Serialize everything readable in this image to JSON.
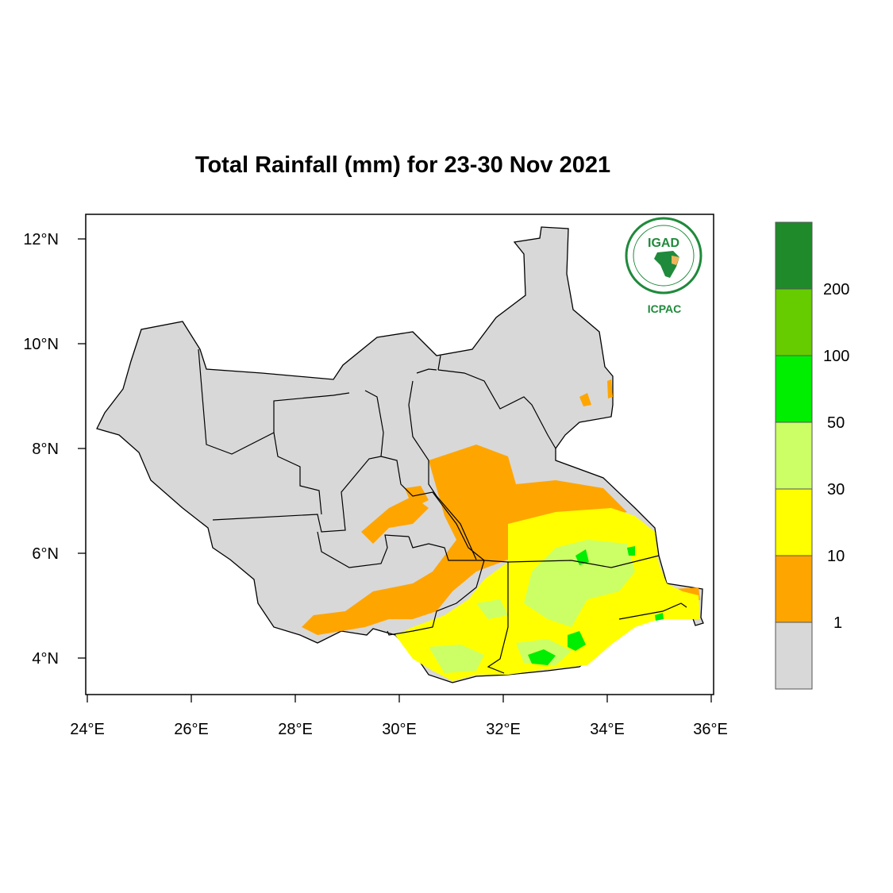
{
  "title": "Total Rainfall (mm) for 23-30 Nov 2021",
  "logo": {
    "top_text": "IGAD",
    "bottom_text": "ICPAC"
  },
  "axes": {
    "x_ticks": [
      "24°E",
      "26°E",
      "28°E",
      "30°E",
      "32°E",
      "34°E",
      "36°E"
    ],
    "y_ticks": [
      "12°N",
      "10°N",
      "8°N",
      "6°N",
      "4°N"
    ]
  },
  "legend": {
    "labels": [
      "200",
      "100",
      "50",
      "30",
      "10",
      "1"
    ],
    "colors": [
      "#1f8a2a",
      "#66cc00",
      "#00ee00",
      "#ccff66",
      "#ffff00",
      "#ffa500",
      "#d8d8d8"
    ]
  },
  "colors": {
    "no_rain": "#d8d8d8",
    "light": "#ffa500",
    "moderate": "#ffff00",
    "heavy": "#ccff66",
    "very_heavy": "#00ee00"
  }
}
